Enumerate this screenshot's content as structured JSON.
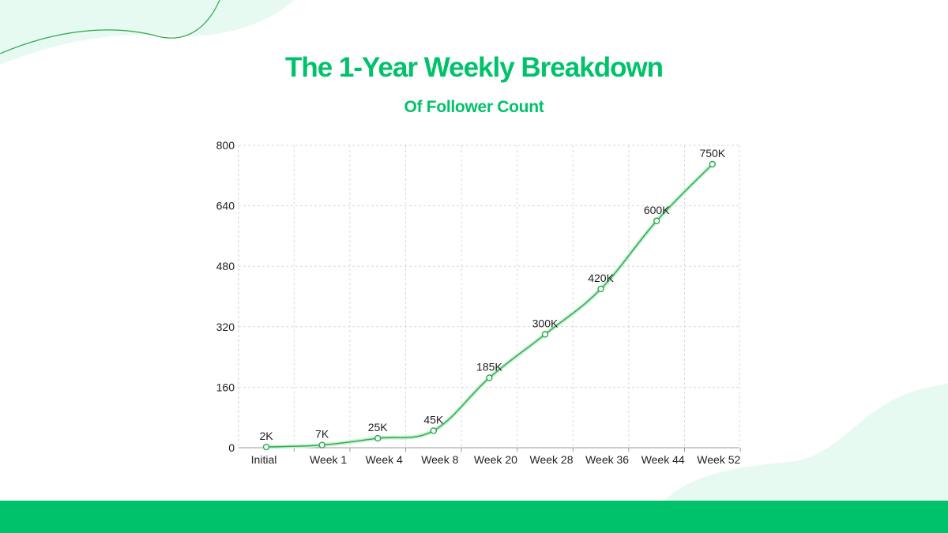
{
  "header": {
    "title": "The 1-Year Weekly Breakdown",
    "subtitle": "Of Follower Count"
  },
  "colors": {
    "brand": "#00c26a",
    "line": "#2aa84a",
    "blob": "#e6faf1",
    "grid": "#d9d9d9"
  },
  "chart_data": {
    "type": "line",
    "title": "The 1-Year Weekly Breakdown",
    "subtitle": "Of Follower Count",
    "xlabel": "",
    "ylabel": "",
    "categories": [
      "Initial",
      "Week 1",
      "Week 4",
      "Week 8",
      "Week 20",
      "Week 28",
      "Week 36",
      "Week 44",
      "Week 52"
    ],
    "series": [
      {
        "values": [
          2,
          7,
          25,
          45,
          185,
          300,
          420,
          600,
          750
        ],
        "labels": [
          "2K",
          "7K",
          "25K",
          "45K",
          "185K",
          "300K",
          "420K",
          "600K",
          "750K"
        ]
      }
    ],
    "ylim": [
      0,
      800
    ],
    "yticks": [
      0,
      160,
      320,
      480,
      640,
      800
    ],
    "grid": true,
    "legend": "none"
  }
}
